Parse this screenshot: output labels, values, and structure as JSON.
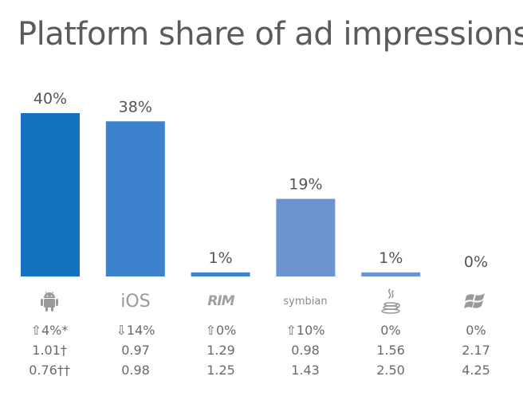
{
  "title": "Platform share of ad impressions",
  "colors": {
    "bar_dark": "#1472c0",
    "bar_mid": "#3d82cc",
    "bar_light": "#6a93d0",
    "icon_gray": "#9a9a9a",
    "text": "#5b5b5b"
  },
  "chart_data": {
    "type": "bar",
    "title": "Platform share of ad impressions",
    "categories": [
      "android-icon",
      "iOS",
      "RIM",
      "symbian",
      "java-icon",
      "windows-icon"
    ],
    "values": [
      40,
      38,
      1,
      19,
      1,
      0
    ],
    "value_labels": [
      "40%",
      "38%",
      "1%",
      "19%",
      "1%",
      "0%"
    ],
    "ylim": [
      0,
      40
    ],
    "grid": false,
    "legend": "none"
  },
  "platforms": [
    {
      "icon": "android-icon",
      "label": "",
      "change": "⇧4%*",
      "row2": "1.01†",
      "row3": "0.76††"
    },
    {
      "icon": "ios-wordmark",
      "label": "iOS",
      "change": "⇩14%",
      "row2": "0.97",
      "row3": "0.98"
    },
    {
      "icon": "rim-logo-icon",
      "label": "RIM",
      "change": "⇧0%",
      "row2": "1.29",
      "row3": "1.25"
    },
    {
      "icon": "symbian-wordmark",
      "label": "symbian",
      "change": "⇧10%",
      "row2": "0.98",
      "row3": "1.43"
    },
    {
      "icon": "java-icon",
      "label": "",
      "change": "0%",
      "row2": "1.56",
      "row3": "2.50"
    },
    {
      "icon": "windows-icon",
      "label": "",
      "change": "0%",
      "row2": "2.17",
      "row3": "4.25"
    }
  ]
}
